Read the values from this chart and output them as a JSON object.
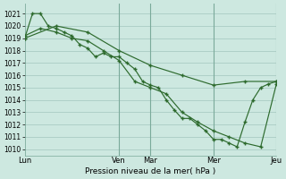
{
  "background_color": "#cde8e0",
  "grid_color": "#aaccc4",
  "line_color": "#2d6a2d",
  "marker_color": "#2d6a2d",
  "xlabel_text": "Pression niveau de la mer( hPa )",
  "ylim": [
    1009.5,
    1021.8
  ],
  "yticks": [
    1010,
    1011,
    1012,
    1013,
    1014,
    1015,
    1016,
    1017,
    1018,
    1019,
    1020,
    1021
  ],
  "xtick_labels": [
    "Lun",
    "Ven",
    "Mar",
    "Mer",
    "Jeu"
  ],
  "xtick_positions": [
    0,
    36,
    48,
    72,
    96
  ],
  "vline_positions": [
    36,
    48,
    72,
    96
  ],
  "xlim": [
    0,
    96
  ],
  "series1": {
    "x": [
      0,
      12,
      24,
      36,
      48,
      60,
      72,
      84,
      96
    ],
    "y": [
      1019.0,
      1020.0,
      1019.5,
      1018.0,
      1016.8,
      1016.0,
      1015.2,
      1015.5,
      1015.5
    ]
  },
  "series2": {
    "x": [
      0,
      3,
      6,
      9,
      12,
      15,
      18,
      21,
      24,
      27,
      30,
      33,
      36,
      39,
      42,
      45,
      48,
      51,
      54,
      57,
      60,
      63,
      66,
      69,
      72,
      75,
      78,
      81,
      84,
      87,
      90,
      93,
      96
    ],
    "y": [
      1019.0,
      1021.0,
      1021.0,
      1020.0,
      1019.8,
      1019.5,
      1019.2,
      1018.5,
      1018.2,
      1017.5,
      1017.8,
      1017.5,
      1017.5,
      1017.0,
      1016.5,
      1015.5,
      1015.2,
      1015.0,
      1014.0,
      1013.2,
      1012.5,
      1012.5,
      1012.0,
      1011.5,
      1010.8,
      1010.8,
      1010.5,
      1010.2,
      1012.2,
      1014.0,
      1015.0,
      1015.3,
      1015.5
    ]
  },
  "series3": {
    "x": [
      0,
      6,
      12,
      18,
      24,
      30,
      36,
      42,
      48,
      54,
      60,
      66,
      72,
      78,
      84,
      90,
      96
    ],
    "y": [
      1019.2,
      1019.8,
      1019.5,
      1019.0,
      1018.8,
      1018.0,
      1017.2,
      1015.5,
      1015.0,
      1014.5,
      1013.0,
      1012.2,
      1011.5,
      1011.0,
      1010.5,
      1010.2,
      1015.3
    ]
  }
}
